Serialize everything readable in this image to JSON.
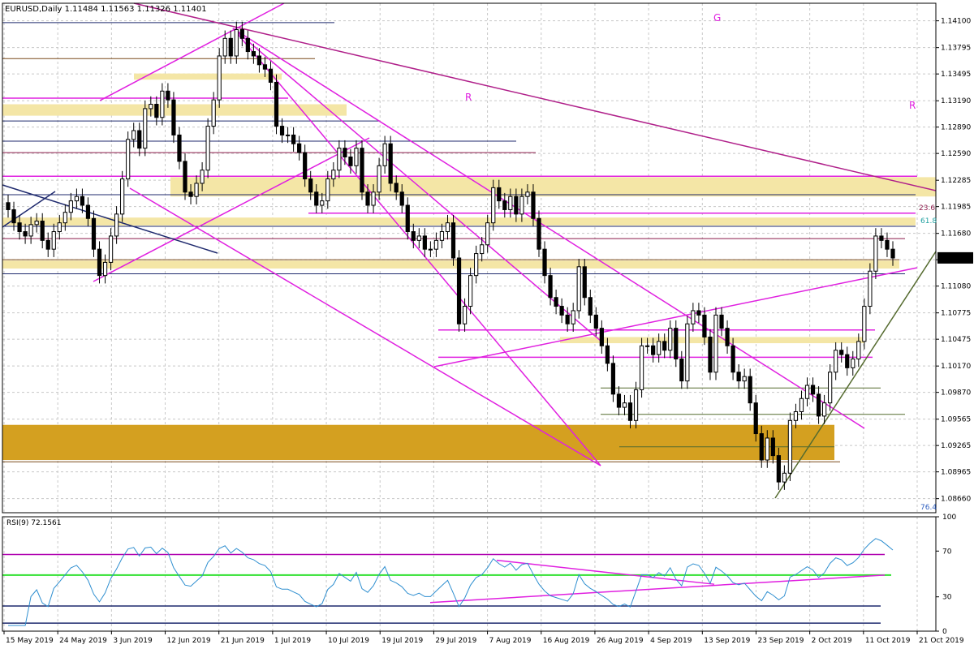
{
  "chart_data": {
    "type": "candlestick",
    "title": "EURUSD,Daily  1.11484 1.11563 1.11326 1.11401",
    "symbol": "EURUSD",
    "timeframe": "Daily",
    "ohlc_header": "1.11484 1.11563 1.11326 1.11401",
    "last_price": "1.11401",
    "ylim": [
      1.085,
      1.143
    ],
    "y_ticks": [
      "1.14100",
      "1.13795",
      "1.13495",
      "1.13190",
      "1.12890",
      "1.12590",
      "1.12285",
      "1.11985",
      "1.11680",
      "1.11380",
      "1.11080",
      "1.10775",
      "1.10475",
      "1.10170",
      "1.09870",
      "1.09565",
      "1.09265",
      "1.08965",
      "1.08660"
    ],
    "x_ticks": [
      "15 May 2019",
      "24 May 2019",
      "3 Jun 2019",
      "12 Jun 2019",
      "21 Jun 2019",
      "1 Jul 2019",
      "10 Jul 2019",
      "19 Jul 2019",
      "29 Jul 2019",
      "7 Aug 2019",
      "16 Aug 2019",
      "26 Aug 2019",
      "4 Sep 2019",
      "13 Sep 2019",
      "23 Sep 2019",
      "2 Oct 2019",
      "11 Oct 2019",
      "21 Oct 2019"
    ],
    "annotations": [
      "G",
      "R",
      "R",
      "23.6",
      "61.8",
      "76.4"
    ],
    "grid": true,
    "legend": "none",
    "closes": [
      1.1195,
      1.118,
      1.117,
      1.1165,
      1.1178,
      1.1182,
      1.116,
      1.115,
      1.117,
      1.118,
      1.1192,
      1.1205,
      1.121,
      1.12,
      1.1185,
      1.115,
      1.112,
      1.1135,
      1.1165,
      1.119,
      1.123,
      1.1275,
      1.1285,
      1.1265,
      1.131,
      1.1315,
      1.13,
      1.133,
      1.132,
      1.128,
      1.125,
      1.1215,
      1.121,
      1.1225,
      1.124,
      1.129,
      1.132,
      1.137,
      1.139,
      1.137,
      1.14,
      1.139,
      1.1375,
      1.137,
      1.136,
      1.1355,
      1.134,
      1.129,
      1.128,
      1.128,
      1.127,
      1.126,
      1.123,
      1.1215,
      1.12,
      1.1205,
      1.123,
      1.124,
      1.1265,
      1.1255,
      1.1245,
      1.1265,
      1.1215,
      1.12,
      1.1215,
      1.1245,
      1.127,
      1.1225,
      1.1215,
      1.12,
      1.117,
      1.116,
      1.1165,
      1.115,
      1.115,
      1.116,
      1.117,
      1.118,
      1.114,
      1.1065,
      1.1085,
      1.112,
      1.1145,
      1.1155,
      1.118,
      1.122,
      1.1205,
      1.1195,
      1.121,
      1.119,
      1.121,
      1.1215,
      1.1185,
      1.115,
      1.112,
      1.1095,
      1.1085,
      1.1075,
      1.1065,
      1.108,
      1.113,
      1.1095,
      1.1075,
      1.106,
      1.104,
      1.102,
      1.0985,
      1.097,
      1.0975,
      1.0955,
      1.099,
      1.104,
      1.104,
      1.103,
      1.1045,
      1.1035,
      1.106,
      1.1025,
      1.1,
      1.1065,
      1.108,
      1.1075,
      1.105,
      1.101,
      1.1075,
      1.106,
      1.104,
      1.101,
      1.1,
      1.1005,
      1.0975,
      1.094,
      1.091,
      1.0935,
      1.0915,
      1.0885,
      1.0895,
      1.0955,
      1.0965,
      1.098,
      1.0995,
      1.0985,
      1.096,
      1.0975,
      1.101,
      1.1035,
      1.103,
      1.1015,
      1.1025,
      1.1045,
      1.1085,
      1.1125,
      1.1165,
      1.116,
      1.115,
      1.114
    ],
    "rsi": {
      "label": "RSI(9) 72.1561",
      "ylim": [
        0,
        100
      ],
      "levels": [
        "100",
        "70",
        "30",
        "0"
      ],
      "last_value": 72.1561
    }
  }
}
